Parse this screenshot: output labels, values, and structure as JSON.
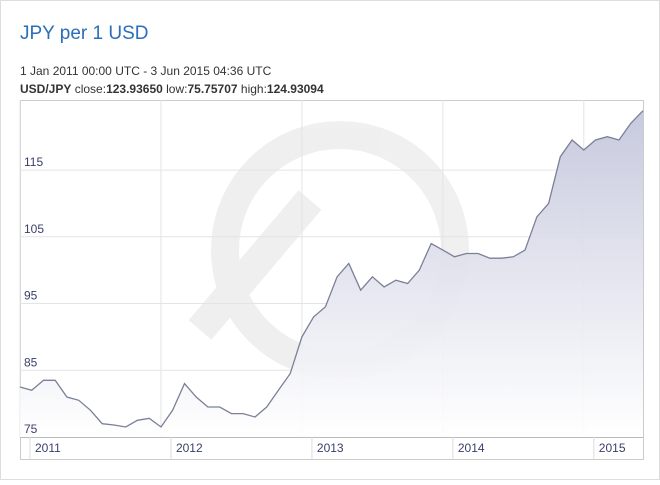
{
  "chart_data": {
    "type": "line",
    "title": "JPY per 1 USD",
    "subtitle": "1 Jan 2011 00:00 UTC - 3 Jun 2015 04:36 UTC",
    "pair": "USD/JPY",
    "stats": [
      {
        "label": "close:",
        "value": "123.93650"
      },
      {
        "label": "low:",
        "value": "75.75707"
      },
      {
        "label": "high:",
        "value": "124.93094"
      }
    ],
    "x": [
      2011.0,
      2011.083,
      2011.167,
      2011.25,
      2011.333,
      2011.417,
      2011.5,
      2011.583,
      2011.667,
      2011.75,
      2011.833,
      2011.917,
      2012.0,
      2012.083,
      2012.167,
      2012.25,
      2012.333,
      2012.417,
      2012.5,
      2012.583,
      2012.667,
      2012.75,
      2012.833,
      2012.917,
      2013.0,
      2013.083,
      2013.167,
      2013.25,
      2013.333,
      2013.417,
      2013.5,
      2013.583,
      2013.667,
      2013.75,
      2013.833,
      2013.917,
      2014.0,
      2014.083,
      2014.167,
      2014.25,
      2014.333,
      2014.417,
      2014.5,
      2014.583,
      2014.667,
      2014.75,
      2014.833,
      2014.917,
      2015.0,
      2015.083,
      2015.167,
      2015.25,
      2015.333,
      2015.42
    ],
    "series": [
      {
        "name": "USD/JPY",
        "color": "#7b8098",
        "fill": "#c9cce0",
        "values": [
          82.5,
          82.0,
          83.5,
          83.5,
          81.0,
          80.5,
          79.0,
          77.0,
          76.8,
          76.5,
          77.5,
          77.8,
          76.5,
          79.0,
          83.0,
          81.0,
          79.5,
          79.5,
          78.5,
          78.5,
          78.0,
          79.5,
          82.0,
          84.5,
          90.0,
          93.0,
          94.5,
          99.0,
          101.0,
          97.0,
          99.0,
          97.5,
          98.5,
          98.0,
          100.0,
          104.0,
          103.0,
          102.0,
          102.5,
          102.5,
          101.8,
          101.8,
          102.0,
          103.0,
          108.0,
          110.0,
          117.0,
          119.5,
          118.0,
          119.5,
          120.0,
          119.5,
          122.0,
          123.9
        ]
      }
    ],
    "xlim": [
      2011.0,
      2015.42
    ],
    "xticks": [
      2011,
      2012,
      2013,
      2014,
      2015
    ],
    "ylim": [
      75,
      125.5
    ],
    "yticks": [
      75,
      85,
      95,
      105,
      115
    ],
    "grid": true
  }
}
